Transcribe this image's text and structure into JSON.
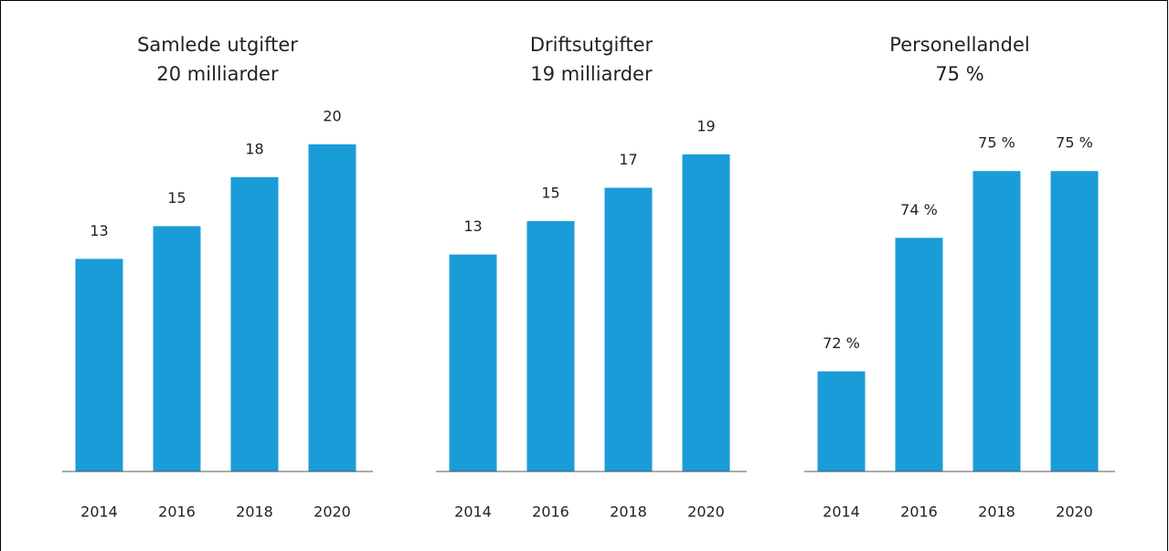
{
  "chart_data": [
    {
      "type": "bar",
      "title": "Samlede utgifter",
      "subtitle": "20 milliarder",
      "categories": [
        "2014",
        "2016",
        "2018",
        "2020"
      ],
      "values": [
        13,
        15,
        18,
        20
      ],
      "color": "#1a9cd8",
      "ylim": [
        0,
        20
      ]
    },
    {
      "type": "bar",
      "title": "Driftsutgifter",
      "subtitle": "19 milliarder",
      "categories": [
        "2014",
        "2016",
        "2018",
        "2020"
      ],
      "values": [
        13,
        15,
        17,
        19
      ],
      "color": "#1a9cd8",
      "ylim": [
        0,
        19.6
      ]
    },
    {
      "type": "bar",
      "title": "Personellandel",
      "subtitle": "75 %",
      "categories": [
        "2014",
        "2016",
        "2018",
        "2020"
      ],
      "values": [
        72,
        74,
        75,
        75
      ],
      "value_labels": [
        "72 %",
        "74 %",
        "75 %",
        "75 %"
      ],
      "color": "#1a9cd8",
      "ylim": [
        70.5,
        75.4
      ]
    }
  ]
}
